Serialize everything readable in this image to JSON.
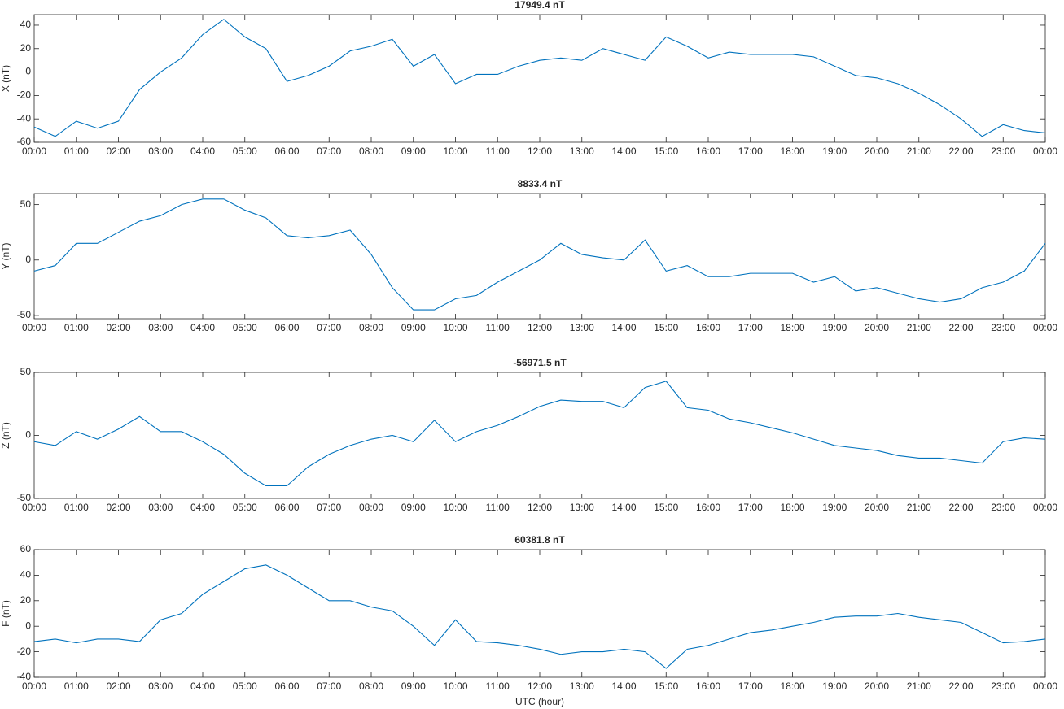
{
  "chart_data": [
    {
      "type": "line",
      "title": "17949.4 nT",
      "y_label": "X (nT)",
      "color": "#0072bd",
      "x": [
        0,
        0.5,
        1,
        1.5,
        2,
        2.5,
        3,
        3.5,
        4,
        4.5,
        5,
        5.5,
        6,
        6.5,
        7,
        7.5,
        8,
        8.5,
        9,
        9.5,
        10,
        10.5,
        11,
        11.5,
        12,
        12.5,
        13,
        13.5,
        14,
        14.5,
        15,
        15.5,
        16,
        16.5,
        17,
        17.5,
        18,
        18.5,
        19,
        19.5,
        20,
        20.5,
        21,
        21.5,
        22,
        22.5,
        23,
        23.5,
        24
      ],
      "values": [
        -47,
        -55,
        -42,
        -48,
        -42,
        -15,
        0,
        12,
        32,
        45,
        30,
        20,
        -8,
        -3,
        5,
        18,
        22,
        28,
        5,
        15,
        -10,
        -2,
        -2,
        5,
        10,
        12,
        10,
        20,
        15,
        10,
        30,
        22,
        12,
        17,
        15,
        15,
        15,
        13,
        5,
        -3,
        -5,
        -10,
        -18,
        -28,
        -40,
        -55,
        -45,
        -50,
        -52
      ],
      "xlim": [
        0,
        24
      ],
      "ylim": [
        -60,
        49
      ],
      "yticks": [
        -60,
        -40,
        -20,
        0,
        20,
        40
      ],
      "xticks": [
        {
          "value": 0,
          "label": "00:00"
        },
        {
          "value": 1,
          "label": "01:00"
        },
        {
          "value": 2,
          "label": "02:00"
        },
        {
          "value": 3,
          "label": "03:00"
        },
        {
          "value": 4,
          "label": "04:00"
        },
        {
          "value": 5,
          "label": "05:00"
        },
        {
          "value": 6,
          "label": "06:00"
        },
        {
          "value": 7,
          "label": "07:00"
        },
        {
          "value": 8,
          "label": "08:00"
        },
        {
          "value": 9,
          "label": "09:00"
        },
        {
          "value": 10,
          "label": "10:00"
        },
        {
          "value": 11,
          "label": "11:00"
        },
        {
          "value": 12,
          "label": "12:00"
        },
        {
          "value": 13,
          "label": "13:00"
        },
        {
          "value": 14,
          "label": "14:00"
        },
        {
          "value": 15,
          "label": "15:00"
        },
        {
          "value": 16,
          "label": "16:00"
        },
        {
          "value": 17,
          "label": "17:00"
        },
        {
          "value": 18,
          "label": "18:00"
        },
        {
          "value": 19,
          "label": "19:00"
        },
        {
          "value": 20,
          "label": "20:00"
        },
        {
          "value": 21,
          "label": "21:00"
        },
        {
          "value": 22,
          "label": "22:00"
        },
        {
          "value": 23,
          "label": "23:00"
        },
        {
          "value": 24,
          "label": "00:00"
        }
      ]
    },
    {
      "type": "line",
      "title": "8833.4 nT",
      "y_label": "Y (nT)",
      "color": "#0072bd",
      "x": [
        0,
        0.5,
        1,
        1.5,
        2,
        2.5,
        3,
        3.5,
        4,
        4.5,
        5,
        5.5,
        6,
        6.5,
        7,
        7.5,
        8,
        8.5,
        9,
        9.5,
        10,
        10.5,
        11,
        11.5,
        12,
        12.5,
        13,
        13.5,
        14,
        14.5,
        15,
        15.5,
        16,
        16.5,
        17,
        17.5,
        18,
        18.5,
        19,
        19.5,
        20,
        20.5,
        21,
        21.5,
        22,
        22.5,
        23,
        23.5,
        24
      ],
      "values": [
        -10,
        -5,
        15,
        15,
        25,
        35,
        40,
        50,
        55,
        55,
        45,
        38,
        22,
        20,
        22,
        27,
        5,
        -25,
        -45,
        -45,
        -35,
        -32,
        -20,
        -10,
        0,
        15,
        5,
        2,
        0,
        18,
        -10,
        -5,
        -15,
        -15,
        -12,
        -12,
        -12,
        -20,
        -15,
        -28,
        -25,
        -30,
        -35,
        -38,
        -35,
        -25,
        -20,
        -10,
        15
      ],
      "xlim": [
        0,
        24
      ],
      "ylim": [
        -53,
        60
      ],
      "yticks": [
        -50,
        0,
        50
      ],
      "xticks": [
        {
          "value": 0,
          "label": "00:00"
        },
        {
          "value": 1,
          "label": "01:00"
        },
        {
          "value": 2,
          "label": "02:00"
        },
        {
          "value": 3,
          "label": "03:00"
        },
        {
          "value": 4,
          "label": "04:00"
        },
        {
          "value": 5,
          "label": "05:00"
        },
        {
          "value": 6,
          "label": "06:00"
        },
        {
          "value": 7,
          "label": "07:00"
        },
        {
          "value": 8,
          "label": "08:00"
        },
        {
          "value": 9,
          "label": "09:00"
        },
        {
          "value": 10,
          "label": "10:00"
        },
        {
          "value": 11,
          "label": "11:00"
        },
        {
          "value": 12,
          "label": "12:00"
        },
        {
          "value": 13,
          "label": "13:00"
        },
        {
          "value": 14,
          "label": "14:00"
        },
        {
          "value": 15,
          "label": "15:00"
        },
        {
          "value": 16,
          "label": "16:00"
        },
        {
          "value": 17,
          "label": "17:00"
        },
        {
          "value": 18,
          "label": "18:00"
        },
        {
          "value": 19,
          "label": "19:00"
        },
        {
          "value": 20,
          "label": "20:00"
        },
        {
          "value": 21,
          "label": "21:00"
        },
        {
          "value": 22,
          "label": "22:00"
        },
        {
          "value": 23,
          "label": "23:00"
        },
        {
          "value": 24,
          "label": "00:00"
        }
      ]
    },
    {
      "type": "line",
      "title": "-56971.5 nT",
      "y_label": "Z (nT)",
      "color": "#0072bd",
      "x": [
        0,
        0.5,
        1,
        1.5,
        2,
        2.5,
        3,
        3.5,
        4,
        4.5,
        5,
        5.5,
        6,
        6.5,
        7,
        7.5,
        8,
        8.5,
        9,
        9.5,
        10,
        10.5,
        11,
        11.5,
        12,
        12.5,
        13,
        13.5,
        14,
        14.5,
        15,
        15.5,
        16,
        16.5,
        17,
        17.5,
        18,
        18.5,
        19,
        19.5,
        20,
        20.5,
        21,
        21.5,
        22,
        22.5,
        23,
        23.5,
        24
      ],
      "values": [
        -5,
        -8,
        3,
        -3,
        5,
        15,
        3,
        3,
        -5,
        -15,
        -30,
        -40,
        -40,
        -25,
        -15,
        -8,
        -3,
        0,
        -5,
        12,
        -5,
        3,
        8,
        15,
        23,
        28,
        27,
        27,
        22,
        38,
        43,
        22,
        20,
        13,
        10,
        6,
        2,
        -3,
        -8,
        -10,
        -12,
        -16,
        -18,
        -18,
        -20,
        -22,
        -5,
        -2,
        -3
      ],
      "xlim": [
        0,
        24
      ],
      "ylim": [
        -50,
        50
      ],
      "yticks": [
        -50,
        0,
        50
      ],
      "xticks": [
        {
          "value": 0,
          "label": "00:00"
        },
        {
          "value": 1,
          "label": "01:00"
        },
        {
          "value": 2,
          "label": "02:00"
        },
        {
          "value": 3,
          "label": "03:00"
        },
        {
          "value": 4,
          "label": "04:00"
        },
        {
          "value": 5,
          "label": "05:00"
        },
        {
          "value": 6,
          "label": "06:00"
        },
        {
          "value": 7,
          "label": "07:00"
        },
        {
          "value": 8,
          "label": "08:00"
        },
        {
          "value": 9,
          "label": "09:00"
        },
        {
          "value": 10,
          "label": "10:00"
        },
        {
          "value": 11,
          "label": "11:00"
        },
        {
          "value": 12,
          "label": "12:00"
        },
        {
          "value": 13,
          "label": "13:00"
        },
        {
          "value": 14,
          "label": "14:00"
        },
        {
          "value": 15,
          "label": "15:00"
        },
        {
          "value": 16,
          "label": "16:00"
        },
        {
          "value": 17,
          "label": "17:00"
        },
        {
          "value": 18,
          "label": "18:00"
        },
        {
          "value": 19,
          "label": "19:00"
        },
        {
          "value": 20,
          "label": "20:00"
        },
        {
          "value": 21,
          "label": "21:00"
        },
        {
          "value": 22,
          "label": "22:00"
        },
        {
          "value": 23,
          "label": "23:00"
        },
        {
          "value": 24,
          "label": "00:00"
        }
      ]
    },
    {
      "type": "line",
      "title": "60381.8 nT",
      "y_label": "F (nT)",
      "x_label": "UTC (hour)",
      "color": "#0072bd",
      "x": [
        0,
        0.5,
        1,
        1.5,
        2,
        2.5,
        3,
        3.5,
        4,
        4.5,
        5,
        5.5,
        6,
        6.5,
        7,
        7.5,
        8,
        8.5,
        9,
        9.5,
        10,
        10.5,
        11,
        11.5,
        12,
        12.5,
        13,
        13.5,
        14,
        14.5,
        15,
        15.5,
        16,
        16.5,
        17,
        17.5,
        18,
        18.5,
        19,
        19.5,
        20,
        20.5,
        21,
        21.5,
        22,
        22.5,
        23,
        23.5,
        24
      ],
      "values": [
        -12,
        -10,
        -13,
        -10,
        -10,
        -12,
        5,
        10,
        25,
        35,
        45,
        48,
        40,
        30,
        20,
        20,
        15,
        12,
        0,
        -15,
        5,
        -12,
        -13,
        -15,
        -18,
        -22,
        -20,
        -20,
        -18,
        -20,
        -33,
        -18,
        -15,
        -10,
        -5,
        -3,
        0,
        3,
        7,
        8,
        8,
        10,
        7,
        5,
        3,
        -5,
        -13,
        -12,
        -10
      ],
      "xlim": [
        0,
        24
      ],
      "ylim": [
        -40,
        60
      ],
      "yticks": [
        -40,
        -20,
        0,
        20,
        40,
        60
      ],
      "xticks": [
        {
          "value": 0,
          "label": "00:00"
        },
        {
          "value": 1,
          "label": "01:00"
        },
        {
          "value": 2,
          "label": "02:00"
        },
        {
          "value": 3,
          "label": "03:00"
        },
        {
          "value": 4,
          "label": "04:00"
        },
        {
          "value": 5,
          "label": "05:00"
        },
        {
          "value": 6,
          "label": "06:00"
        },
        {
          "value": 7,
          "label": "07:00"
        },
        {
          "value": 8,
          "label": "08:00"
        },
        {
          "value": 9,
          "label": "09:00"
        },
        {
          "value": 10,
          "label": "10:00"
        },
        {
          "value": 11,
          "label": "11:00"
        },
        {
          "value": 12,
          "label": "12:00"
        },
        {
          "value": 13,
          "label": "13:00"
        },
        {
          "value": 14,
          "label": "14:00"
        },
        {
          "value": 15,
          "label": "15:00"
        },
        {
          "value": 16,
          "label": "16:00"
        },
        {
          "value": 17,
          "label": "17:00"
        },
        {
          "value": 18,
          "label": "18:00"
        },
        {
          "value": 19,
          "label": "19:00"
        },
        {
          "value": 20,
          "label": "20:00"
        },
        {
          "value": 21,
          "label": "21:00"
        },
        {
          "value": 22,
          "label": "22:00"
        },
        {
          "value": 23,
          "label": "23:00"
        },
        {
          "value": 24,
          "label": "00:00"
        }
      ]
    }
  ]
}
